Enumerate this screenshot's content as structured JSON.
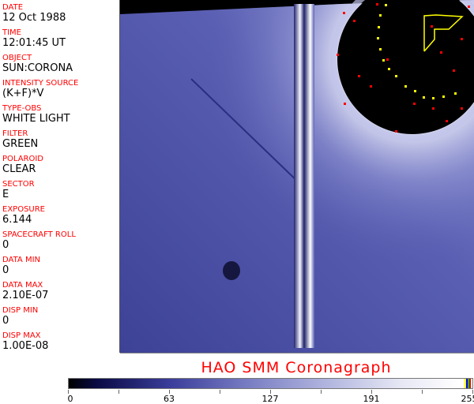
{
  "metadata": [
    {
      "label": "DATE",
      "value": "12 Oct 1988"
    },
    {
      "label": "TIME",
      "value": "12:01:45 UT"
    },
    {
      "label": "OBJECT",
      "value": "SUN:CORONA"
    },
    {
      "label": "INTENSITY SOURCE",
      "value": "(K+F)*V"
    },
    {
      "label": "TYPE-OBS",
      "value": "WHITE LIGHT"
    },
    {
      "label": "FILTER",
      "value": "GREEN"
    },
    {
      "label": "POLAROID",
      "value": "CLEAR"
    },
    {
      "label": "SECTOR",
      "value": "E"
    },
    {
      "label": "EXPOSURE",
      "value": "6.144"
    },
    {
      "label": "SPACECRAFT ROLL",
      "value": "0"
    },
    {
      "label": "DATA MIN",
      "value": "0"
    },
    {
      "label": "DATA MAX",
      "value": "2.10E-07"
    },
    {
      "label": "DISP MIN",
      "value": "0"
    },
    {
      "label": "DISP MAX",
      "value": "1.00E-08"
    }
  ],
  "title": "HAO  SMM  Coronagraph",
  "colorbar": {
    "ticks": [
      "0",
      "63",
      "127",
      "191",
      "255"
    ],
    "min_color": "#000000",
    "max_color": "#ffffff"
  },
  "colors": {
    "label": "#ff0000",
    "image_blue": "#4a4fa8",
    "overlay_red": "#ff0000",
    "overlay_yellow": "#ffff00"
  }
}
